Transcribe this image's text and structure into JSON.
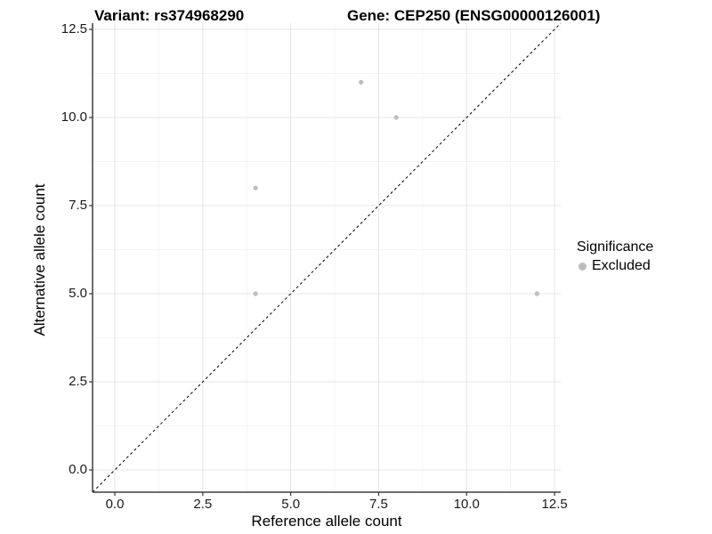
{
  "chart_data": {
    "type": "scatter",
    "title_left": "Variant: rs374968290",
    "title_right": "Gene: CEP250 (ENSG00000126001)",
    "xlabel": "Reference allele count",
    "ylabel": "Alternative allele count",
    "xlim": [
      -0.633,
      12.674
    ],
    "ylim": [
      -0.631,
      12.677
    ],
    "x_ticks": [
      0,
      2.5,
      5,
      7.5,
      10,
      12.5
    ],
    "x_tick_labels": [
      "0.0",
      "2.5",
      "5.0",
      "7.5",
      "10.0",
      "12.5"
    ],
    "y_ticks": [
      0,
      2.5,
      5,
      7.5,
      10,
      12.5
    ],
    "y_tick_labels": [
      "0.0",
      "2.5",
      "5.0",
      "7.5",
      "10.0",
      "12.5"
    ],
    "minor_ticks": [
      1.25,
      3.75,
      6.25,
      8.75,
      11.25
    ],
    "grid": true,
    "series": [
      {
        "name": "Excluded",
        "points": [
          [
            7,
            11
          ],
          [
            8,
            10
          ],
          [
            4,
            8
          ],
          [
            4,
            5
          ],
          [
            12,
            5
          ]
        ]
      }
    ],
    "reference_line": {
      "type": "identity",
      "style": "dashed"
    },
    "legend": {
      "title": "Significance",
      "position": "right",
      "entries": [
        {
          "label": "Excluded"
        }
      ]
    }
  },
  "colors": {
    "background": "#ffffff",
    "grid_major": "#e5e5e5",
    "grid_minor": "#f1f1f1",
    "axis_line": "#3f3f3f",
    "tick_mark": "#333333",
    "text": "#000000",
    "point": "#bdbdbd",
    "reference_line": "#000000"
  }
}
